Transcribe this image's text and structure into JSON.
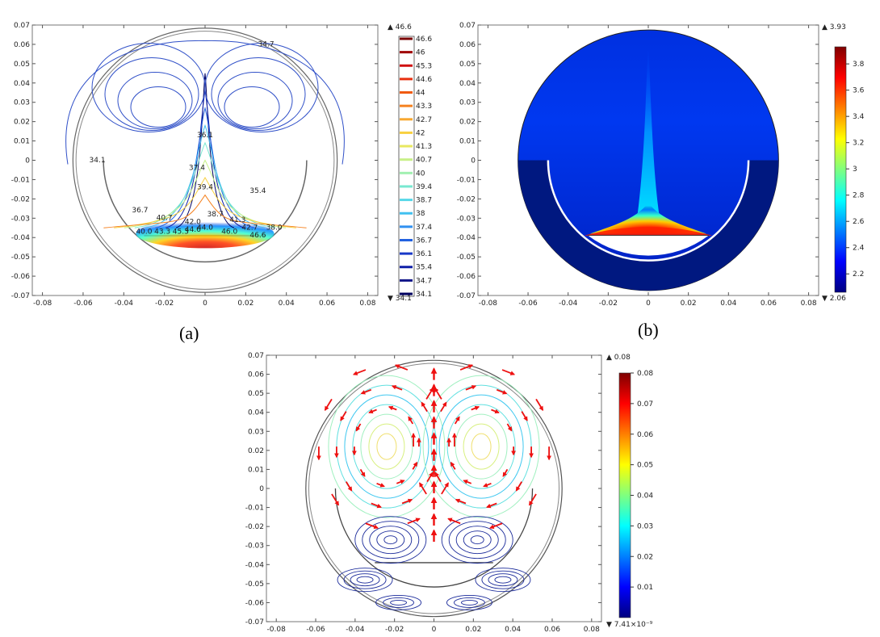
{
  "chart_data": [
    {
      "type": "contour",
      "panel_label": "(a)",
      "x_ticks": [
        "-0.08",
        "-0.06",
        "-0.04",
        "-0.02",
        "0",
        "0.02",
        "0.04",
        "0.06",
        "0.08"
      ],
      "y_ticks": [
        "0.07",
        "0.06",
        "0.05",
        "0.04",
        "0.03",
        "0.02",
        "0.01",
        "0",
        "-0.01",
        "-0.02",
        "-0.03",
        "-0.04",
        "-0.05",
        "-0.06",
        "-0.07"
      ],
      "xlim": [
        -0.085,
        0.085
      ],
      "ylim": [
        -0.07,
        0.07
      ],
      "max_label": "46.6",
      "min_label": "34.1",
      "legend_levels": [
        "46.6",
        "46",
        "45.3",
        "44.6",
        "44",
        "43.3",
        "42.7",
        "42",
        "41.3",
        "40.7",
        "40",
        "39.4",
        "38.7",
        "38",
        "37.4",
        "36.7",
        "36.1",
        "35.4",
        "34.7",
        "34.1"
      ],
      "legend_colors": [
        "#7a0000",
        "#a00000",
        "#d01010",
        "#e83010",
        "#f05a10",
        "#f58220",
        "#f8a830",
        "#f8d040",
        "#e8e860",
        "#c8f088",
        "#a0f0b0",
        "#78e8d0",
        "#58d8e8",
        "#40c0f0",
        "#3090f0",
        "#2060e0",
        "#1838c8",
        "#1020a8",
        "#101488",
        "#000060"
      ],
      "contour_labels": [
        {
          "text": "34.7",
          "x": 0.03,
          "y": 0.059
        },
        {
          "text": "36.1",
          "x": 0.0,
          "y": 0.012
        },
        {
          "text": "34.1",
          "x": -0.053,
          "y": -0.001
        },
        {
          "text": "37.4",
          "x": -0.004,
          "y": -0.005
        },
        {
          "text": "39.4",
          "x": 0.0,
          "y": -0.015
        },
        {
          "text": "35.4",
          "x": 0.026,
          "y": -0.017
        },
        {
          "text": "36.7",
          "x": -0.032,
          "y": -0.027
        },
        {
          "text": "40.7",
          "x": -0.02,
          "y": -0.031
        },
        {
          "text": "38.7",
          "x": 0.005,
          "y": -0.029
        },
        {
          "text": "42.0",
          "x": -0.006,
          "y": -0.033
        },
        {
          "text": "41.3",
          "x": 0.016,
          "y": -0.032
        },
        {
          "text": "40.0",
          "x": -0.03,
          "y": -0.038
        },
        {
          "text": "43.3",
          "x": -0.021,
          "y": -0.038
        },
        {
          "text": "45.3",
          "x": -0.012,
          "y": -0.038
        },
        {
          "text": "44.6",
          "x": -0.006,
          "y": -0.037
        },
        {
          "text": "44.0",
          "x": 0.0,
          "y": -0.036
        },
        {
          "text": "46.0",
          "x": 0.012,
          "y": -0.038
        },
        {
          "text": "42.7",
          "x": 0.022,
          "y": -0.036
        },
        {
          "text": "46.6",
          "x": 0.026,
          "y": -0.04
        },
        {
          "text": "38.0",
          "x": 0.034,
          "y": -0.036
        }
      ]
    },
    {
      "type": "heatmap",
      "panel_label": "(b)",
      "x_ticks": [
        "-0.08",
        "-0.06",
        "-0.04",
        "-0.02",
        "0",
        "0.02",
        "0.04",
        "0.06",
        "0.08"
      ],
      "y_ticks": [
        "0.07",
        "0.06",
        "0.05",
        "0.04",
        "0.03",
        "0.02",
        "0.01",
        "0",
        "-0.01",
        "-0.02",
        "-0.03",
        "-0.04",
        "-0.05",
        "-0.06",
        "-0.07"
      ],
      "xlim": [
        -0.085,
        0.085
      ],
      "ylim": [
        -0.07,
        0.07
      ],
      "max_label": "3.93",
      "min_label": "2.06",
      "colorbar_ticks": [
        "3.8",
        "3.6",
        "3.4",
        "3.2",
        "3",
        "2.8",
        "2.6",
        "2.4",
        "2.2"
      ],
      "colorbar_range": [
        2.06,
        3.93
      ]
    },
    {
      "type": "streamline",
      "x_ticks": [
        "-0.08",
        "-0.06",
        "-0.04",
        "-0.02",
        "0",
        "0.02",
        "0.04",
        "0.06",
        "0.08"
      ],
      "y_ticks": [
        "0.07",
        "0.06",
        "0.05",
        "0.04",
        "0.03",
        "0.02",
        "0.01",
        "0",
        "-0.01",
        "-0.02",
        "-0.03",
        "-0.04",
        "-0.05",
        "-0.06",
        "-0.07"
      ],
      "xlim": [
        -0.085,
        0.085
      ],
      "ylim": [
        -0.07,
        0.07
      ],
      "max_label": "0.08",
      "min_label": "7.41×10⁻⁹",
      "colorbar_ticks": [
        "0.08",
        "0.07",
        "0.06",
        "0.05",
        "0.04",
        "0.03",
        "0.02",
        "0.01"
      ],
      "colorbar_range": [
        0.0,
        0.08
      ]
    }
  ],
  "colors": {
    "jet": [
      "#00007f",
      "#0000ff",
      "#007fff",
      "#00ffff",
      "#7fff7f",
      "#ffff00",
      "#ff7f00",
      "#ff0000",
      "#7f0000"
    ],
    "arrow": "#ee1111",
    "boundary": "#555555"
  }
}
